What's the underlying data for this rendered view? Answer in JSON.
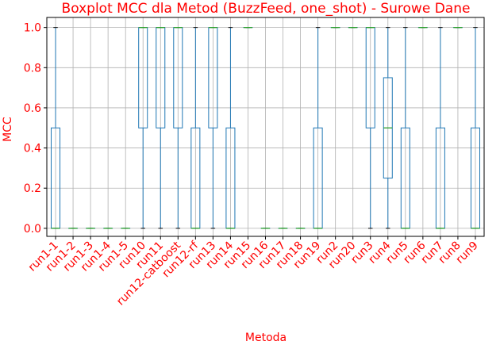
{
  "chart_data": {
    "type": "boxplot",
    "title": "Boxplot MCC dla Metod (BuzzFeed, one_shot) - Surowe Dane",
    "xlabel": "Metoda",
    "ylabel": "MCC",
    "ylim": [
      -0.04,
      1.05
    ],
    "yticks": [
      0.0,
      0.2,
      0.4,
      0.6,
      0.8,
      1.0
    ],
    "ytick_labels": [
      "0.0",
      "0.2",
      "0.4",
      "0.6",
      "0.8",
      "1.0"
    ],
    "grid": true,
    "colors": {
      "box": "#1f77b4",
      "median": "#2ca02c",
      "text": "#ff0000",
      "grid": "#b0b0b0"
    },
    "categories": [
      "run1-1",
      "run1-2",
      "run1-3",
      "run1-4",
      "run1-5",
      "run10",
      "run11",
      "run12-catboost",
      "run12-rf",
      "run13",
      "run14",
      "run15",
      "run16",
      "run17",
      "run18",
      "run19",
      "run2",
      "run20",
      "run3",
      "run4",
      "run5",
      "run6",
      "run7",
      "run8",
      "run9"
    ],
    "boxes": [
      {
        "whislo": 0,
        "q1": 0,
        "med": 0,
        "q3": 0.5,
        "whishi": 1
      },
      {
        "whislo": 0,
        "q1": 0,
        "med": 0,
        "q3": 0,
        "whishi": 0
      },
      {
        "whislo": 0,
        "q1": 0,
        "med": 0,
        "q3": 0,
        "whishi": 0
      },
      {
        "whislo": 0,
        "q1": 0,
        "med": 0,
        "q3": 0,
        "whishi": 0
      },
      {
        "whislo": 0,
        "q1": 0,
        "med": 0,
        "q3": 0,
        "whishi": 0
      },
      {
        "whislo": 0,
        "q1": 0.5,
        "med": 1,
        "q3": 1,
        "whishi": 1
      },
      {
        "whislo": 0,
        "q1": 0.5,
        "med": 1,
        "q3": 1,
        "whishi": 1
      },
      {
        "whislo": 0,
        "q1": 0.5,
        "med": 1,
        "q3": 1,
        "whishi": 1
      },
      {
        "whislo": 0,
        "q1": 0,
        "med": 0,
        "q3": 0.5,
        "whishi": 1
      },
      {
        "whislo": 0,
        "q1": 0.5,
        "med": 1,
        "q3": 1,
        "whishi": 1
      },
      {
        "whislo": 0,
        "q1": 0,
        "med": 0,
        "q3": 0.5,
        "whishi": 1
      },
      {
        "whislo": 1,
        "q1": 1,
        "med": 1,
        "q3": 1,
        "whishi": 1
      },
      {
        "whislo": 0,
        "q1": 0,
        "med": 0,
        "q3": 0,
        "whishi": 0
      },
      {
        "whislo": 0,
        "q1": 0,
        "med": 0,
        "q3": 0,
        "whishi": 0
      },
      {
        "whislo": 0,
        "q1": 0,
        "med": 0,
        "q3": 0,
        "whishi": 0
      },
      {
        "whislo": 0,
        "q1": 0,
        "med": 0,
        "q3": 0.5,
        "whishi": 1
      },
      {
        "whislo": 1,
        "q1": 1,
        "med": 1,
        "q3": 1,
        "whishi": 1
      },
      {
        "whislo": 1,
        "q1": 1,
        "med": 1,
        "q3": 1,
        "whishi": 1
      },
      {
        "whislo": 0,
        "q1": 0.5,
        "med": 1,
        "q3": 1,
        "whishi": 1
      },
      {
        "whislo": 0,
        "q1": 0.25,
        "med": 0.5,
        "q3": 0.75,
        "whishi": 1
      },
      {
        "whislo": 0,
        "q1": 0,
        "med": 0,
        "q3": 0.5,
        "whishi": 1
      },
      {
        "whislo": 1,
        "q1": 1,
        "med": 1,
        "q3": 1,
        "whishi": 1
      },
      {
        "whislo": 0,
        "q1": 0,
        "med": 0,
        "q3": 0.5,
        "whishi": 1
      },
      {
        "whislo": 1,
        "q1": 1,
        "med": 1,
        "q3": 1,
        "whishi": 1
      },
      {
        "whislo": 0,
        "q1": 0,
        "med": 0,
        "q3": 0.5,
        "whishi": 1
      }
    ]
  }
}
